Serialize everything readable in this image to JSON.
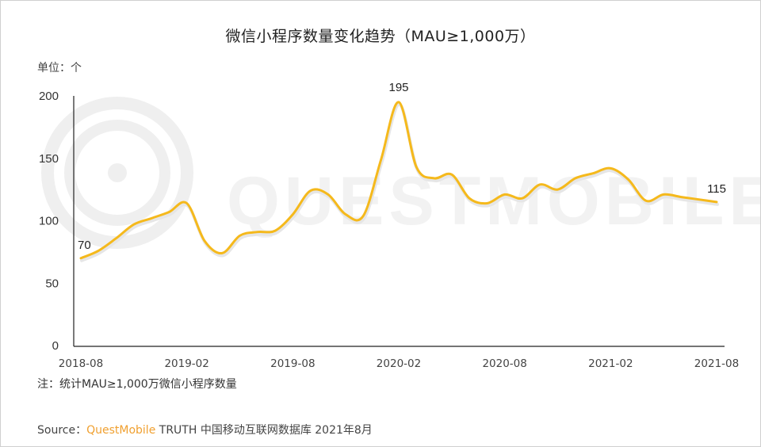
{
  "header": {
    "title": "微信小程序数量变化趋势（MAU≥1,000万）",
    "unit": "单位：个"
  },
  "footer": {
    "note": "注：统计MAU≥1,000万微信小程序数量",
    "source_prefix": "Source：",
    "source_brand": "QuestMobile",
    "source_rest": " TRUTH 中国移动互联网数据库 2021年8月"
  },
  "watermark": {
    "text": "QUESTMOBILE"
  },
  "colors": {
    "line": "#f5b91c",
    "axis": "#222222",
    "brand": "#f0a030",
    "watermark": "#efefef"
  },
  "chart_data": {
    "type": "line",
    "title": "微信小程序数量变化趋势（MAU≥1,000万）",
    "xlabel": "",
    "ylabel": "单位：个",
    "ylim": [
      0,
      200
    ],
    "yticks": [
      0,
      50,
      100,
      150,
      200
    ],
    "grid": false,
    "legend": null,
    "x_tick_labels": [
      "2018-08",
      "2019-02",
      "2019-08",
      "2020-02",
      "2020-08",
      "2021-02",
      "2021-08"
    ],
    "x_tick_indices": [
      0,
      6,
      12,
      18,
      24,
      30,
      36
    ],
    "x": [
      "2018-08",
      "2018-09",
      "2018-10",
      "2018-11",
      "2018-12",
      "2019-01",
      "2019-02",
      "2019-03",
      "2019-04",
      "2019-05",
      "2019-06",
      "2019-07",
      "2019-08",
      "2019-09",
      "2019-10",
      "2019-11",
      "2019-12",
      "2020-01",
      "2020-02",
      "2020-03",
      "2020-04",
      "2020-05",
      "2020-06",
      "2020-07",
      "2020-08",
      "2020-09",
      "2020-10",
      "2020-11",
      "2020-12",
      "2021-01",
      "2021-02",
      "2021-03",
      "2021-04",
      "2021-05",
      "2021-06",
      "2021-07",
      "2021-08"
    ],
    "series": [
      {
        "name": "MAU≥1,000万微信小程序数量",
        "values": [
          70,
          76,
          86,
          97,
          102,
          107,
          114,
          84,
          74,
          88,
          91,
          92,
          105,
          124,
          121,
          105,
          104,
          149,
          195,
          143,
          134,
          137,
          118,
          114,
          121,
          118,
          129,
          125,
          134,
          138,
          142,
          133,
          116,
          121,
          119,
          117,
          115
        ]
      }
    ],
    "annotations": [
      {
        "index": 0,
        "text": "70"
      },
      {
        "index": 18,
        "text": "195"
      },
      {
        "index": 36,
        "text": "115"
      }
    ]
  }
}
